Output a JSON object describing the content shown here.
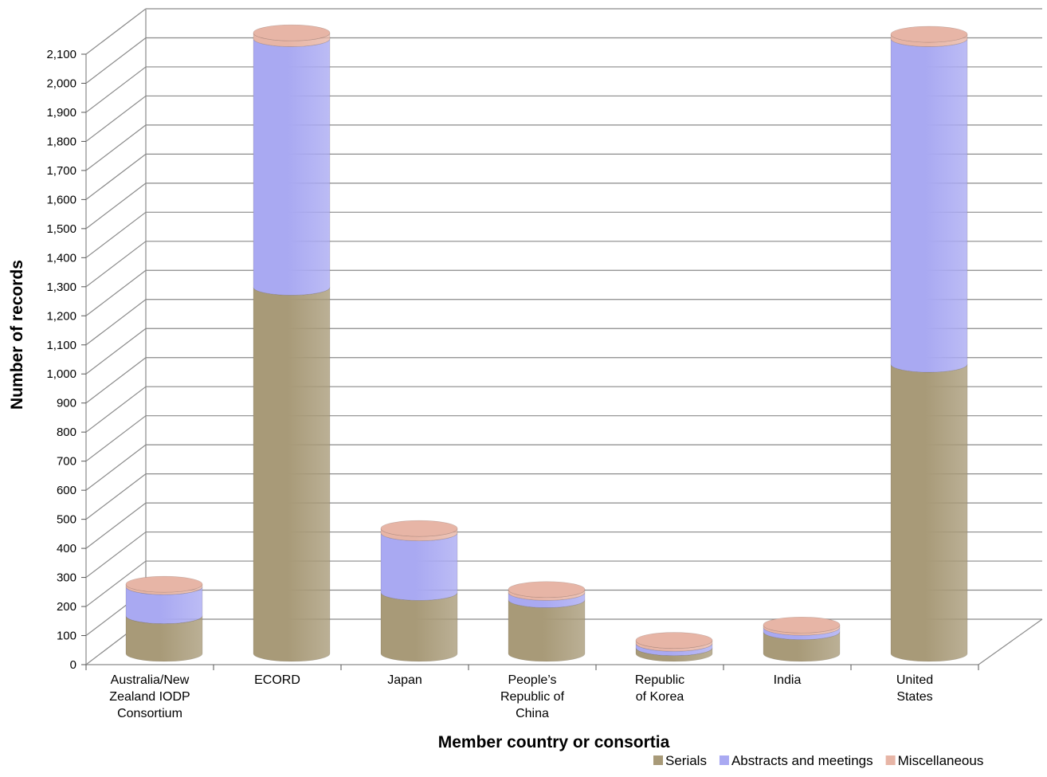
{
  "chart_data": {
    "type": "bar",
    "style": "3d-stacked-cylinder",
    "title": "",
    "xlabel": "Member country or consortia",
    "ylabel": "Number of records",
    "ylim": [
      0,
      2100
    ],
    "ytick_step": 100,
    "grid": true,
    "legend": "bottom-right",
    "categories": [
      [
        "Australia/New",
        "Zealand IODP",
        "Consortium"
      ],
      [
        "ECORD"
      ],
      [
        "Japan"
      ],
      [
        "People’s",
        "Republic of",
        "China"
      ],
      [
        "Republic",
        "of Korea"
      ],
      [
        "India"
      ],
      [
        "United",
        "States"
      ]
    ],
    "series": [
      {
        "name": "Serials",
        "color": "#a89a78",
        "values": [
          130,
          1260,
          210,
          185,
          20,
          75,
          995
        ]
      },
      {
        "name": "Abstracts and meetings",
        "color": "#a9a9f2",
        "values": [
          100,
          855,
          205,
          25,
          15,
          15,
          1120
        ]
      },
      {
        "name": "Miscellaneous",
        "color": "#e7b5a6",
        "values": [
          8,
          20,
          15,
          10,
          10,
          8,
          15
        ]
      }
    ]
  }
}
